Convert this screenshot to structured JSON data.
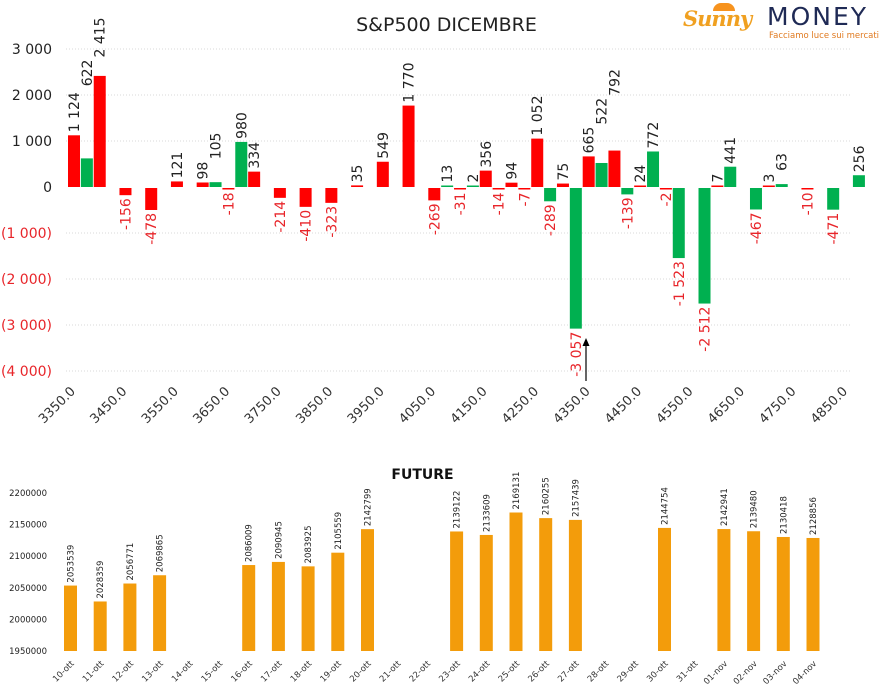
{
  "brand": {
    "name_left": "Sunny",
    "name_right": "MONEY",
    "tagline": "Facciamo luce sui mercati"
  },
  "colors": {
    "red": "#ff0000",
    "green": "#00b050",
    "orange": "#f39c0b",
    "negative_label": "#e8252a",
    "positive_label": "#222222"
  },
  "chart_data": [
    {
      "type": "bar",
      "title": "S&P500 DICEMBRE",
      "xlabel": "",
      "ylabel": "",
      "ylim": [
        -4000,
        3000
      ],
      "y_ticks": [
        3000,
        2000,
        1000,
        0,
        -1000,
        -2000,
        -3000,
        -4000
      ],
      "y_tick_labels": [
        "3 000",
        "2 000",
        "1 000",
        "0",
        "(1 000)",
        "(2 000)",
        "(3 000)",
        "(4 000)"
      ],
      "x_tick_labels": [
        "3350.0",
        "3450.0",
        "3550.0",
        "3650.0",
        "3750.0",
        "3850.0",
        "3950.0",
        "4050.0",
        "4150.0",
        "4250.0",
        "4350.0",
        "4450.0",
        "4550.0",
        "4650.0",
        "4750.0",
        "4850.0"
      ],
      "x_ticks": [
        3350,
        3450,
        3550,
        3650,
        3750,
        3850,
        3950,
        4050,
        4150,
        4250,
        4350,
        4450,
        4550,
        4650,
        4750,
        4850
      ],
      "grid": true,
      "annotation": "arrow pointing up near 4350",
      "annotation_strike": 4390,
      "bars": [
        {
          "strike": 3350,
          "series": "red",
          "value": 1124,
          "label": "1 124"
        },
        {
          "strike": 3375,
          "series": "green",
          "value": 622,
          "label": "622"
        },
        {
          "strike": 3400,
          "series": "red",
          "value": 2415,
          "label": "2 415"
        },
        {
          "strike": 3450,
          "series": "red",
          "value": -156,
          "label": "-156"
        },
        {
          "strike": 3500,
          "series": "red",
          "value": -478,
          "label": "-478"
        },
        {
          "strike": 3550,
          "series": "red",
          "value": 121,
          "label": "121"
        },
        {
          "strike": 3600,
          "series": "red",
          "value": 98,
          "label": "98"
        },
        {
          "strike": 3625,
          "series": "green",
          "value": 105,
          "label": "105"
        },
        {
          "strike": 3650,
          "series": "red",
          "value": -18,
          "label": "-18"
        },
        {
          "strike": 3675,
          "series": "green",
          "value": 980,
          "label": "980"
        },
        {
          "strike": 3700,
          "series": "red",
          "value": 334,
          "label": "334"
        },
        {
          "strike": 3750,
          "series": "red",
          "value": -214,
          "label": "-214"
        },
        {
          "strike": 3800,
          "series": "red",
          "value": -410,
          "label": "-410"
        },
        {
          "strike": 3850,
          "series": "red",
          "value": -323,
          "label": "-323"
        },
        {
          "strike": 3900,
          "series": "red",
          "value": 35,
          "label": "35"
        },
        {
          "strike": 3950,
          "series": "red",
          "value": 549,
          "label": "549"
        },
        {
          "strike": 4000,
          "series": "red",
          "value": 1770,
          "label": "1 770"
        },
        {
          "strike": 4050,
          "series": "red",
          "value": -269,
          "label": "-269"
        },
        {
          "strike": 4075,
          "series": "green",
          "value": 13,
          "label": "13"
        },
        {
          "strike": 4100,
          "series": "red",
          "value": -31,
          "label": "-31"
        },
        {
          "strike": 4125,
          "series": "green",
          "value": 2,
          "label": "2"
        },
        {
          "strike": 4150,
          "series": "red",
          "value": 356,
          "label": "356"
        },
        {
          "strike": 4175,
          "series": "red",
          "value": -14,
          "label": "-14"
        },
        {
          "strike": 4200,
          "series": "red",
          "value": 94,
          "label": "94"
        },
        {
          "strike": 4225,
          "series": "red",
          "value": -7,
          "label": "-7"
        },
        {
          "strike": 4250,
          "series": "red",
          "value": 1052,
          "label": "1 052"
        },
        {
          "strike": 4275,
          "series": "green",
          "value": -289,
          "label": "-289"
        },
        {
          "strike": 4300,
          "series": "red",
          "value": 75,
          "label": "75"
        },
        {
          "strike": 4325,
          "series": "green",
          "value": -3057,
          "label": "-3 057"
        },
        {
          "strike": 4350,
          "series": "red",
          "value": 665,
          "label": "665"
        },
        {
          "strike": 4375,
          "series": "green",
          "value": 522,
          "label": "522"
        },
        {
          "strike": 4400,
          "series": "red",
          "value": 792,
          "label": "792"
        },
        {
          "strike": 4425,
          "series": "green",
          "value": -139,
          "label": "-139"
        },
        {
          "strike": 4450,
          "series": "red",
          "value": 24,
          "label": "24"
        },
        {
          "strike": 4475,
          "series": "green",
          "value": 772,
          "label": "772"
        },
        {
          "strike": 4500,
          "series": "red",
          "value": -2,
          "label": "-2"
        },
        {
          "strike": 4525,
          "series": "green",
          "value": -1523,
          "label": "-1 523"
        },
        {
          "strike": 4575,
          "series": "green",
          "value": -2512,
          "label": "-2 512"
        },
        {
          "strike": 4600,
          "series": "red",
          "value": 7,
          "label": "7"
        },
        {
          "strike": 4625,
          "series": "green",
          "value": 441,
          "label": "441"
        },
        {
          "strike": 4675,
          "series": "green",
          "value": -467,
          "label": "-467"
        },
        {
          "strike": 4700,
          "series": "red",
          "value": 3,
          "label": "3"
        },
        {
          "strike": 4725,
          "series": "green",
          "value": 63,
          "label": "63"
        },
        {
          "strike": 4775,
          "series": "red",
          "value": -10,
          "label": "-10"
        },
        {
          "strike": 4825,
          "series": "green",
          "value": -471,
          "label": "-471"
        },
        {
          "strike": 4875,
          "series": "green",
          "value": 256,
          "label": "256"
        }
      ]
    },
    {
      "type": "bar",
      "title": "FUTURE",
      "xlabel": "",
      "ylabel": "",
      "ylim": [
        1950000,
        2200000
      ],
      "y_ticks": [
        1950000,
        2000000,
        2050000,
        2100000,
        2150000,
        2200000
      ],
      "y_tick_labels": [
        "1950000",
        "2000000",
        "2050000",
        "2100000",
        "2150000",
        "2200000"
      ],
      "grid": false,
      "categories": [
        "10-ott",
        "11-ott",
        "12-ott",
        "13-ott",
        "14-ott",
        "15-ott",
        "16-ott",
        "17-ott",
        "18-ott",
        "19-ott",
        "20-ott",
        "21-ott",
        "22-ott",
        "23-ott",
        "24-ott",
        "25-ott",
        "26-ott",
        "27-ott",
        "28-ott",
        "29-ott",
        "30-ott",
        "31-ott",
        "01-nov",
        "02-nov",
        "03-nov",
        "04-nov"
      ],
      "values": [
        2053539,
        2028359,
        2056771,
        2069865,
        null,
        null,
        2086009,
        2090945,
        2083925,
        2105559,
        2142799,
        null,
        null,
        2139122,
        2133609,
        2169131,
        2160255,
        2157439,
        null,
        null,
        2144754,
        null,
        2142941,
        2139480,
        2130418,
        2128856
      ]
    }
  ]
}
